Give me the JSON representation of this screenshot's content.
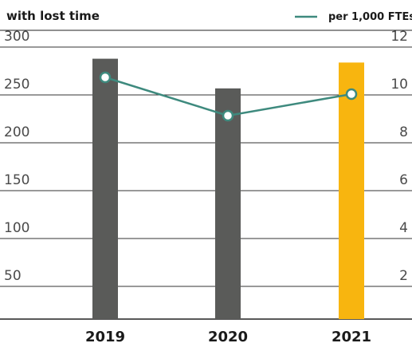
{
  "chart_data": {
    "type": "bar",
    "title": "with lost time",
    "categories": [
      "2019",
      "2020",
      "2021"
    ],
    "y_left": {
      "ticks": [
        50,
        100,
        150,
        200,
        250,
        300
      ],
      "range": [
        0,
        300
      ]
    },
    "y_right": {
      "ticks": [
        2,
        4,
        6,
        8,
        10,
        12
      ],
      "range": [
        0,
        12
      ]
    },
    "bars": {
      "values": [
        272,
        241,
        268
      ],
      "colors": [
        "#5a5b59",
        "#5a5b59",
        "#f8b50f"
      ]
    },
    "series": [
      {
        "name": "per 1,000 FTEs",
        "axis": "right",
        "values": [
          10.1,
          8.5,
          9.4
        ],
        "color": "#3e8a7e"
      }
    ],
    "legend": "top-right",
    "grid": true
  }
}
